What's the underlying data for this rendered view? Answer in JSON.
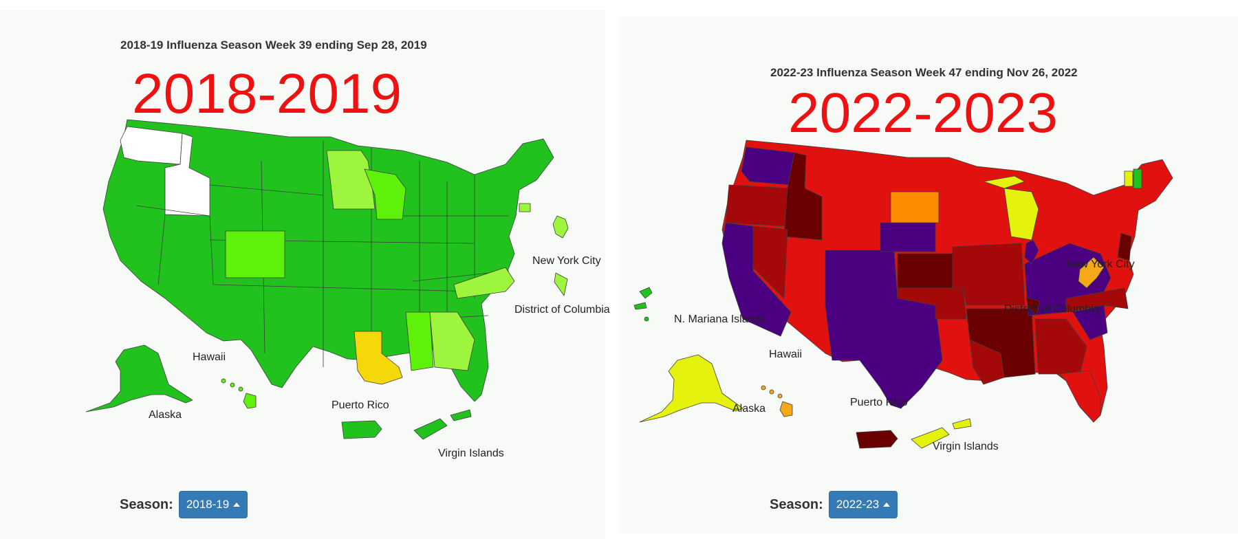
{
  "left": {
    "title": "2018-19 Influenza Season Week 39 ending Sep 28, 2019",
    "overlay_year": "2018-2019",
    "labels": {
      "nyc": "New York City",
      "dc": "District of Columbia",
      "hawaii": "Hawaii",
      "alaska": "Alaska",
      "puerto_rico": "Puerto Rico",
      "virgin_islands": "Virgin Islands"
    },
    "season_label": "Season:",
    "season_value": "2018-19"
  },
  "right": {
    "title": "2022-23 Influenza Season Week 47 ending Nov 26, 2022",
    "overlay_year": "2022-2023",
    "labels": {
      "nyc": "New York City",
      "dc": "District of Columbia",
      "mariana": "N. Mariana Islands",
      "hawaii": "Hawaii",
      "alaska": "Alaska",
      "puerto_rico": "Puerto Rico",
      "virgin_islands": "Virgin Islands"
    },
    "season_label": "Season:",
    "season_value": "2022-23"
  },
  "colors": {
    "minimal_green": "#22c21e",
    "low_green": "#5ef10a",
    "lime": "#9ef53d",
    "yellow": "#f5d80a",
    "bright_yellow": "#e5f20e",
    "orange": "#ff8c00",
    "amber": "#f5a818",
    "red": "#e0110e",
    "dark_red": "#a50808",
    "maroon": "#6b0000",
    "purple": "#4b0082",
    "no_data": "#ffffff"
  }
}
